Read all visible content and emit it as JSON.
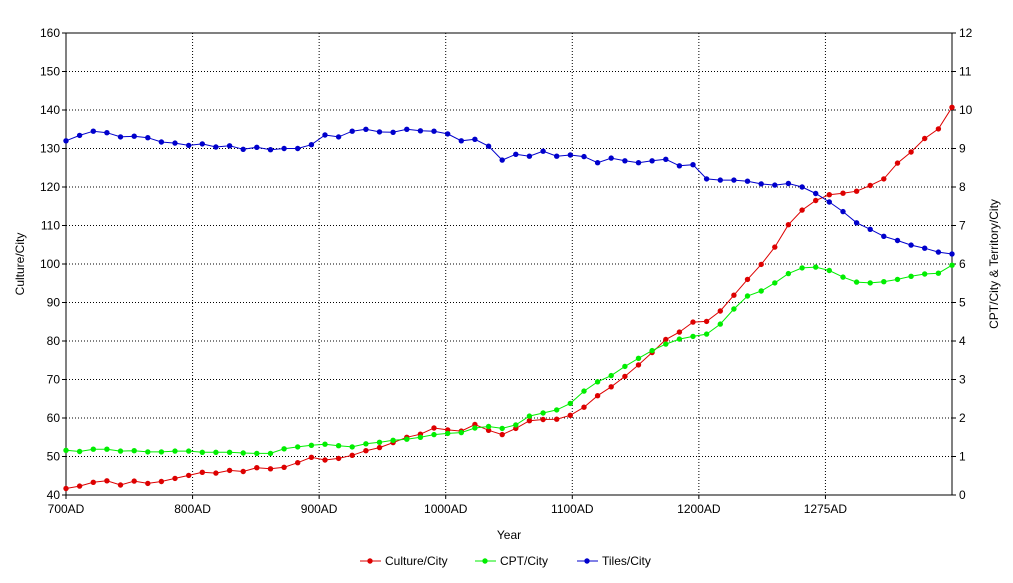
{
  "chart_data": {
    "type": "line",
    "xlabel": "Year",
    "ylabel_left": "Culture/City",
    "ylabel_right": "CPT/City & Territory/City",
    "ylim_left": [
      40,
      160
    ],
    "ylim_right": [
      0,
      12
    ],
    "yticks_left": [
      "40",
      "50",
      "60",
      "70",
      "80",
      "90",
      "100",
      "110",
      "120",
      "130",
      "140",
      "150",
      "160"
    ],
    "yticks_right": [
      "0",
      "1",
      "2",
      "3",
      "4",
      "5",
      "6",
      "7",
      "8",
      "9",
      "10",
      "11",
      "12"
    ],
    "xtick_labels": [
      "700AD",
      "800AD",
      "900AD",
      "1000AD",
      "1100AD",
      "1200AD",
      "1275AD"
    ],
    "grid": true,
    "legend_position": "bottom",
    "colors": {
      "Culture/City": "#dd0000",
      "CPT/City": "#00ee00",
      "Tiles/City": "#0000cc"
    },
    "series": [
      {
        "name": "Culture/City",
        "axis": "left",
        "values": [
          41.7,
          42.3,
          43.3,
          43.7,
          42.6,
          43.6,
          43.0,
          43.5,
          44.3,
          45.1,
          45.9,
          45.7,
          46.4,
          46.1,
          47.1,
          46.8,
          47.2,
          48.4,
          49.8,
          49.1,
          49.5,
          50.3,
          51.5,
          52.3,
          53.6,
          55.0,
          55.8,
          57.4,
          56.9,
          56.6,
          58.3,
          56.8,
          55.7,
          57.3,
          59.3,
          59.6,
          59.7,
          60.7,
          62.8,
          65.8,
          68.1,
          70.8,
          73.8,
          77.0,
          80.4,
          82.3,
          84.9,
          85.1,
          87.8,
          91.9,
          96.0,
          99.9,
          104.4,
          110.2,
          114.0,
          116.5,
          118.0,
          118.4,
          118.9,
          120.4,
          122.1,
          126.2,
          129.1,
          132.6,
          135.1,
          140.7
        ]
      },
      {
        "name": "CPT/City",
        "axis": "right",
        "values": [
          1.16,
          1.13,
          1.19,
          1.19,
          1.14,
          1.15,
          1.12,
          1.12,
          1.14,
          1.14,
          1.11,
          1.11,
          1.11,
          1.09,
          1.08,
          1.08,
          1.2,
          1.25,
          1.29,
          1.32,
          1.28,
          1.25,
          1.33,
          1.37,
          1.42,
          1.45,
          1.5,
          1.57,
          1.6,
          1.62,
          1.74,
          1.78,
          1.73,
          1.82,
          2.05,
          2.13,
          2.21,
          2.38,
          2.7,
          2.94,
          3.1,
          3.34,
          3.55,
          3.75,
          3.92,
          4.05,
          4.12,
          4.18,
          4.44,
          4.83,
          5.17,
          5.3,
          5.51,
          5.75,
          5.9,
          5.92,
          5.83,
          5.66,
          5.53,
          5.51,
          5.54,
          5.6,
          5.68,
          5.74,
          5.76,
          5.97
        ]
      },
      {
        "name": "Tiles/City",
        "axis": "right",
        "values": [
          9.2,
          9.34,
          9.45,
          9.41,
          9.3,
          9.32,
          9.28,
          9.17,
          9.14,
          9.08,
          9.12,
          9.04,
          9.07,
          8.98,
          9.03,
          8.97,
          9.0,
          9.0,
          9.1,
          9.35,
          9.3,
          9.45,
          9.5,
          9.43,
          9.42,
          9.5,
          9.46,
          9.45,
          9.38,
          9.2,
          9.24,
          9.06,
          8.7,
          8.85,
          8.8,
          8.93,
          8.8,
          8.83,
          8.79,
          8.63,
          8.75,
          8.68,
          8.63,
          8.68,
          8.72,
          8.55,
          8.58,
          8.21,
          8.18,
          8.18,
          8.15,
          8.08,
          8.05,
          8.09,
          8.0,
          7.83,
          7.61,
          7.36,
          7.07,
          6.9,
          6.72,
          6.61,
          6.49,
          6.41,
          6.31,
          6.26
        ]
      }
    ]
  }
}
